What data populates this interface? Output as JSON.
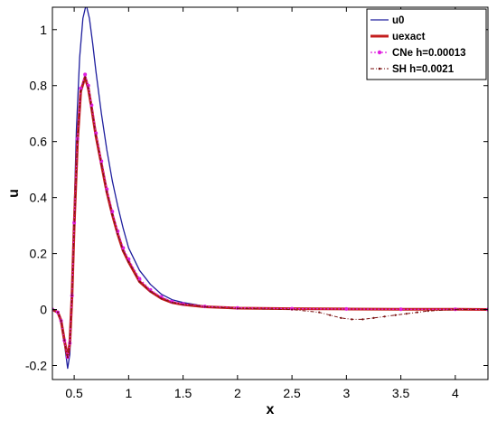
{
  "chart_data": {
    "type": "line",
    "xlabel": "x",
    "ylabel": "u",
    "xlim": [
      0.3,
      4.3
    ],
    "ylim": [
      -0.25,
      1.08
    ],
    "x_ticks": [
      0.5,
      1,
      1.5,
      2,
      2.5,
      3,
      3.5,
      4
    ],
    "x_tick_labels": [
      "0.5",
      "1",
      "1.5",
      "2",
      "2.5",
      "3",
      "3.5",
      "4"
    ],
    "y_ticks": [
      -0.2,
      0,
      0.2,
      0.4,
      0.6,
      0.8,
      1
    ],
    "y_tick_labels": [
      "-0.2",
      "0",
      "0.2",
      "0.4",
      "0.6",
      "0.8",
      "1"
    ],
    "grid": false,
    "legend_position": "top-right",
    "series": [
      {
        "name": "u0",
        "color": "#1f1f9e",
        "style": "solid",
        "x": [
          0.3,
          0.35,
          0.38,
          0.41,
          0.44,
          0.46,
          0.48,
          0.5,
          0.52,
          0.55,
          0.58,
          0.61,
          0.64,
          0.67,
          0.7,
          0.75,
          0.8,
          0.85,
          0.9,
          0.95,
          1.0,
          1.1,
          1.2,
          1.3,
          1.4,
          1.5,
          1.7,
          2.0,
          2.5,
          3.0,
          3.5,
          4.0,
          4.3
        ],
        "values": [
          0.0,
          -0.01,
          -0.04,
          -0.12,
          -0.21,
          -0.16,
          0.05,
          0.35,
          0.64,
          0.9,
          1.04,
          1.09,
          1.04,
          0.95,
          0.85,
          0.7,
          0.57,
          0.46,
          0.37,
          0.29,
          0.22,
          0.14,
          0.09,
          0.055,
          0.035,
          0.025,
          0.012,
          0.006,
          0.003,
          0.002,
          0.001,
          0.001,
          0.0
        ]
      },
      {
        "name": "uexact",
        "color": "#c41e1e",
        "style": "thick",
        "x": [
          0.3,
          0.35,
          0.38,
          0.41,
          0.44,
          0.46,
          0.48,
          0.5,
          0.53,
          0.56,
          0.6,
          0.63,
          0.66,
          0.7,
          0.75,
          0.8,
          0.85,
          0.9,
          0.95,
          1.0,
          1.1,
          1.2,
          1.3,
          1.4,
          1.5,
          1.7,
          2.0,
          2.5,
          3.0,
          3.5,
          4.0,
          4.3
        ],
        "values": [
          0.0,
          -0.01,
          -0.04,
          -0.11,
          -0.17,
          -0.12,
          0.05,
          0.3,
          0.6,
          0.78,
          0.83,
          0.79,
          0.72,
          0.62,
          0.52,
          0.42,
          0.34,
          0.27,
          0.21,
          0.17,
          0.1,
          0.065,
          0.04,
          0.025,
          0.018,
          0.01,
          0.005,
          0.003,
          0.002,
          0.001,
          0.001,
          0.0
        ]
      },
      {
        "name": "CNe h=0.00013",
        "color": "#e020e0",
        "style": "dotted-markers",
        "x": [
          0.3,
          0.35,
          0.38,
          0.41,
          0.44,
          0.46,
          0.48,
          0.5,
          0.53,
          0.56,
          0.6,
          0.63,
          0.66,
          0.7,
          0.75,
          0.8,
          0.85,
          0.9,
          0.95,
          1.0,
          1.1,
          1.2,
          1.3,
          1.4,
          1.5,
          1.7,
          2.0,
          2.5,
          3.0,
          3.5,
          4.0,
          4.3
        ],
        "values": [
          0.0,
          -0.01,
          -0.04,
          -0.11,
          -0.17,
          -0.12,
          0.05,
          0.31,
          0.61,
          0.79,
          0.84,
          0.8,
          0.73,
          0.63,
          0.53,
          0.43,
          0.35,
          0.28,
          0.22,
          0.18,
          0.11,
          0.07,
          0.045,
          0.028,
          0.02,
          0.011,
          0.006,
          0.003,
          0.002,
          0.001,
          0.001,
          0.0
        ]
      },
      {
        "name": "SH h=0.0021",
        "color": "#7a1010",
        "style": "dashdot",
        "x": [
          0.3,
          0.35,
          0.38,
          0.41,
          0.44,
          0.46,
          0.48,
          0.5,
          0.53,
          0.56,
          0.6,
          0.63,
          0.66,
          0.7,
          0.75,
          0.8,
          0.85,
          0.9,
          0.95,
          1.0,
          1.1,
          1.2,
          1.3,
          1.4,
          1.5,
          1.7,
          2.0,
          2.5,
          2.75,
          2.85,
          2.95,
          3.05,
          3.15,
          3.25,
          3.35,
          3.45,
          3.55,
          3.65,
          3.75,
          4.0,
          4.3
        ],
        "values": [
          0.0,
          -0.01,
          -0.04,
          -0.11,
          -0.17,
          -0.12,
          0.05,
          0.3,
          0.6,
          0.78,
          0.83,
          0.79,
          0.72,
          0.62,
          0.52,
          0.42,
          0.34,
          0.27,
          0.21,
          0.17,
          0.1,
          0.065,
          0.04,
          0.025,
          0.018,
          0.01,
          0.004,
          0.0,
          -0.01,
          -0.02,
          -0.03,
          -0.035,
          -0.035,
          -0.03,
          -0.025,
          -0.02,
          -0.015,
          -0.01,
          -0.005,
          0.0,
          0.0
        ]
      }
    ]
  }
}
